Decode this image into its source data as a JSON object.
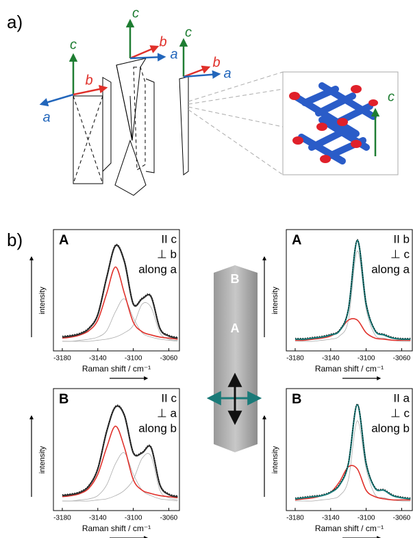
{
  "panel_a": {
    "label": "a)",
    "triads": [
      {
        "c": "c",
        "b": "b",
        "a": "a"
      },
      {
        "c": "c",
        "b": "b",
        "a": "a"
      },
      {
        "c": "c",
        "b": "b",
        "a": "a"
      }
    ],
    "inset_axis": "c"
  },
  "panel_b": {
    "label": "b)",
    "crystal_labels": [
      "B",
      "A"
    ]
  },
  "chart_data": [
    {
      "type": "line",
      "label": "A",
      "annotations": [
        "II c",
        "⊥ b",
        "along a"
      ],
      "x_label": "Raman shift / cm⁻¹",
      "y_label": "intensity",
      "xlim": [
        -3190,
        -3048
      ],
      "xticks": [
        -3180,
        -3140,
        -3100,
        -3060
      ],
      "ylim": [
        0,
        1
      ],
      "x": [
        -3180,
        -3170,
        -3160,
        -3150,
        -3140,
        -3130,
        -3120,
        -3110,
        -3100,
        -3090,
        -3080,
        -3070,
        -3060,
        -3050
      ],
      "series": [
        {
          "color": "#aaaaaa",
          "values": [
            0,
            0,
            0.01,
            0.02,
            0.04,
            0.1,
            0.28,
            0.4,
            0.22,
            0.08,
            0.04,
            0.02,
            0.01,
            0
          ]
        },
        {
          "color": "#aaaaaa",
          "values": [
            0,
            0,
            0,
            0,
            0.01,
            0.02,
            0.04,
            0.08,
            0.15,
            0.35,
            0.32,
            0.08,
            0.02,
            0.01
          ]
        },
        {
          "color": "#e0302a",
          "values": [
            0.03,
            0.04,
            0.06,
            0.1,
            0.2,
            0.45,
            0.7,
            0.45,
            0.18,
            0.09,
            0.06,
            0.04,
            0.03,
            0.02
          ]
        },
        {
          "color": "#333333",
          "values": [
            0.04,
            0.05,
            0.07,
            0.12,
            0.25,
            0.6,
            0.9,
            0.75,
            0.35,
            0.4,
            0.42,
            0.12,
            0.05,
            0.03
          ]
        }
      ]
    },
    {
      "type": "line",
      "label": "B",
      "annotations": [
        "II c",
        "⊥ a",
        "along b"
      ],
      "x_label": "Raman shift / cm⁻¹",
      "y_label": "intensity",
      "xlim": [
        -3190,
        -3048
      ],
      "xticks": [
        -3180,
        -3140,
        -3100,
        -3060
      ],
      "ylim": [
        0,
        1
      ],
      "x": [
        -3180,
        -3170,
        -3160,
        -3150,
        -3140,
        -3130,
        -3120,
        -3110,
        -3100,
        -3090,
        -3080,
        -3070,
        -3060,
        -3050
      ],
      "series": [
        {
          "color": "#aaaaaa",
          "values": [
            0,
            0,
            0.01,
            0.02,
            0.05,
            0.15,
            0.35,
            0.45,
            0.25,
            0.1,
            0.05,
            0.02,
            0.01,
            0
          ]
        },
        {
          "color": "#aaaaaa",
          "values": [
            0,
            0,
            0,
            0,
            0.01,
            0.02,
            0.05,
            0.1,
            0.2,
            0.4,
            0.42,
            0.1,
            0.03,
            0.01
          ]
        },
        {
          "color": "#e0302a",
          "values": [
            0.04,
            0.05,
            0.07,
            0.12,
            0.25,
            0.5,
            0.7,
            0.5,
            0.2,
            0.1,
            0.07,
            0.05,
            0.04,
            0.03
          ]
        },
        {
          "color": "#333333",
          "values": [
            0.05,
            0.06,
            0.08,
            0.14,
            0.3,
            0.65,
            0.88,
            0.8,
            0.45,
            0.45,
            0.5,
            0.15,
            0.06,
            0.04
          ]
        }
      ]
    },
    {
      "type": "line",
      "label": "A",
      "annotations": [
        "II b",
        "⊥ c",
        "along a"
      ],
      "x_label": "Raman shift / cm⁻¹",
      "y_label": "intensity",
      "xlim": [
        -3190,
        -3048
      ],
      "xticks": [
        -3180,
        -3140,
        -3100,
        -3060
      ],
      "ylim": [
        0,
        1
      ],
      "x": [
        -3180,
        -3170,
        -3160,
        -3150,
        -3140,
        -3130,
        -3120,
        -3110,
        -3100,
        -3090,
        -3080,
        -3070,
        -3060,
        -3050
      ],
      "series": [
        {
          "color": "#aaaaaa",
          "values": [
            0,
            0,
            0,
            0.01,
            0.02,
            0.05,
            0.2,
            0.85,
            0.3,
            0.06,
            0.03,
            0.01,
            0,
            0
          ]
        },
        {
          "color": "#e0302a",
          "values": [
            0.01,
            0.01,
            0.02,
            0.03,
            0.05,
            0.1,
            0.2,
            0.2,
            0.08,
            0.03,
            0.02,
            0.01,
            0.01,
            0.01
          ]
        },
        {
          "color": "#1a7a78",
          "values": [
            0.02,
            0.02,
            0.03,
            0.04,
            0.06,
            0.1,
            0.3,
            0.95,
            0.35,
            0.1,
            0.06,
            0.03,
            0.02,
            0.02
          ]
        }
      ]
    },
    {
      "type": "line",
      "label": "B",
      "annotations": [
        "II a",
        "⊥ c",
        "along b"
      ],
      "x_label": "Raman shift / cm⁻¹",
      "y_label": "intensity",
      "xlim": [
        -3190,
        -3048
      ],
      "xticks": [
        -3180,
        -3140,
        -3100,
        -3060
      ],
      "ylim": [
        0,
        1
      ],
      "x": [
        -3180,
        -3170,
        -3160,
        -3150,
        -3140,
        -3130,
        -3120,
        -3110,
        -3100,
        -3090,
        -3080,
        -3070,
        -3060,
        -3050
      ],
      "series": [
        {
          "color": "#aaaaaa",
          "values": [
            0,
            0,
            0,
            0.01,
            0.02,
            0.05,
            0.2,
            0.75,
            0.3,
            0.06,
            0.03,
            0.01,
            0,
            0
          ]
        },
        {
          "color": "#e0302a",
          "values": [
            0.01,
            0.02,
            0.03,
            0.05,
            0.08,
            0.18,
            0.32,
            0.3,
            0.1,
            0.04,
            0.02,
            0.01,
            0.01,
            0.01
          ]
        },
        {
          "color": "#1a7a78",
          "values": [
            0.02,
            0.03,
            0.04,
            0.05,
            0.08,
            0.15,
            0.35,
            0.9,
            0.35,
            0.12,
            0.1,
            0.05,
            0.03,
            0.02
          ]
        }
      ]
    }
  ]
}
